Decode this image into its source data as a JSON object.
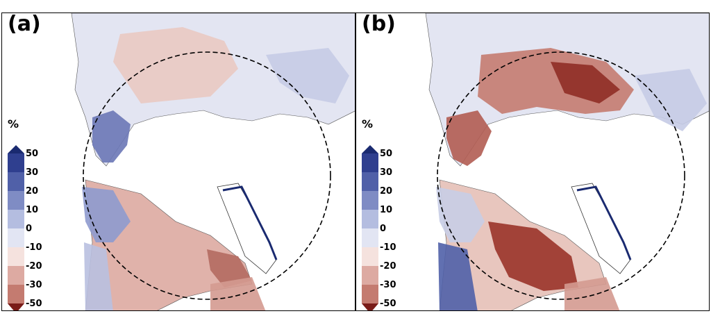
{
  "panels": [
    {
      "label": "(a)"
    },
    {
      "label": "(b)"
    }
  ],
  "colorbar": {
    "unit": "%",
    "ticks": [
      "50",
      "30",
      "20",
      "10",
      "0",
      "-10",
      "-20",
      "-30",
      "-50"
    ],
    "colors": {
      "extend_high": "#1a2a70",
      "b5": "#2f3f8f",
      "b4": "#5060a8",
      "b3": "#7f8cc4",
      "b2": "#b4bde0",
      "b1": "#e2e5f3",
      "r1": "#f5e2de",
      "r2": "#ddaaa2",
      "r3": "#c47b70",
      "r4": "#a84a40",
      "extend_low": "#7a1c18"
    }
  }
}
